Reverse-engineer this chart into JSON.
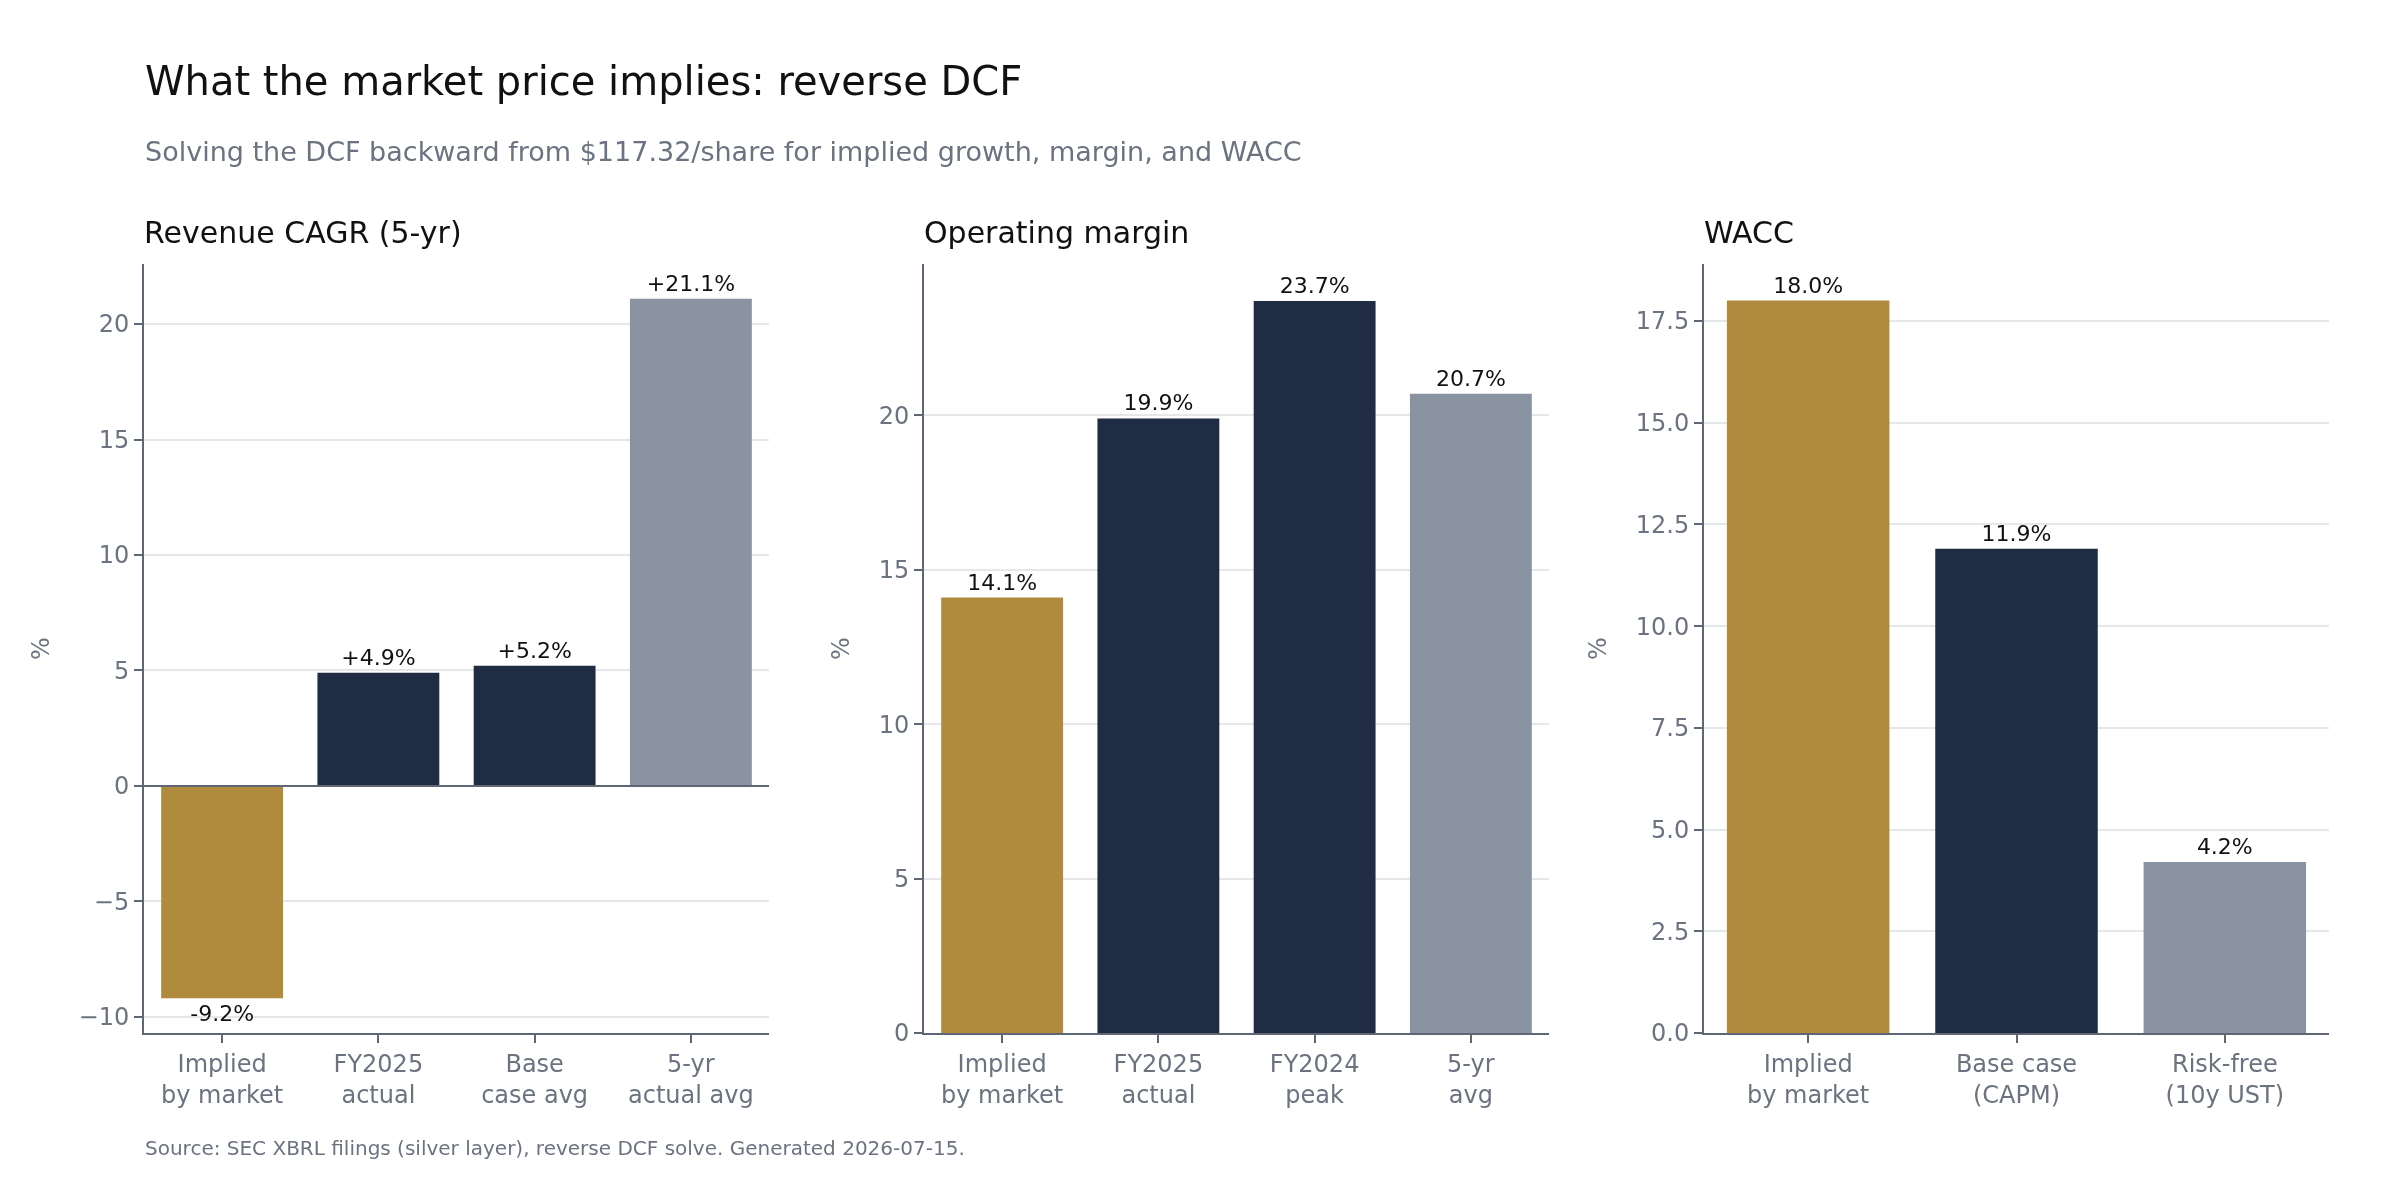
{
  "chart_data": [
    {
      "type": "other",
      "title": "What the market price implies: reverse DCF",
      "subtitle": "Solving the DCF backward from $117.32/share for implied growth, margin, and WACC",
      "annotations": [
        "Source: SEC XBRL filings (silver layer), reverse DCF solve. Generated 2026-07-15."
      ]
    },
    {
      "type": "bar",
      "title": "Revenue CAGR (5-yr)",
      "ylabel": "%",
      "categories": [
        "Implied\nby market",
        "FY2025\nactual",
        "Base\ncase avg",
        "5-yr\nactual avg"
      ],
      "values": [
        -9.2,
        4.9,
        5.2,
        21.1
      ],
      "colors": [
        "#b08b3e",
        "#1f2c44",
        "#1f2c44",
        "#8a93a2"
      ],
      "value_labels": [
        "-9.2%",
        "+4.9%",
        "+5.2%",
        "+21.1%"
      ],
      "ylim": [
        -10.7,
        22.6
      ],
      "yticks": [
        {
          "value": -10,
          "label": "−10"
        },
        {
          "value": -5,
          "label": "−5"
        },
        0,
        5,
        10,
        15,
        20
      ],
      "grid": "y",
      "ref_lines": [
        {
          "axis": "y",
          "value": 0,
          "color": "#5f6675"
        }
      ]
    },
    {
      "type": "bar",
      "title": "Operating margin",
      "ylabel": "%",
      "categories": [
        "Implied\nby market",
        "FY2025\nactual",
        "FY2024\npeak",
        "5-yr\navg"
      ],
      "values": [
        14.1,
        19.9,
        23.7,
        20.7
      ],
      "colors": [
        "#b08b3e",
        "#1f2c44",
        "#1f2c44",
        "#8a93a2"
      ],
      "value_labels": [
        "14.1%",
        "19.9%",
        "23.7%",
        "20.7%"
      ],
      "ylim": [
        0,
        24.9
      ],
      "yticks": [
        0,
        5,
        10,
        15,
        20
      ],
      "grid": "y"
    },
    {
      "type": "bar",
      "title": "WACC",
      "ylabel": "%",
      "categories": [
        "Implied\nby market",
        "Base case\n(CAPM)",
        "Risk-free\n(10y UST)"
      ],
      "values": [
        18.0,
        11.9,
        4.2
      ],
      "colors": [
        "#b08b3e",
        "#1f2c44",
        "#8a93a2"
      ],
      "value_labels": [
        "18.0%",
        "11.9%",
        "4.2%"
      ],
      "ylim": [
        0,
        18.9
      ],
      "yticks": [
        {
          "value": 0,
          "label": "0.0"
        },
        2.5,
        {
          "value": 5,
          "label": "5.0"
        },
        7.5,
        {
          "value": 10,
          "label": "10.0"
        },
        12.5,
        {
          "value": 15,
          "label": "15.0"
        },
        17.5
      ],
      "grid": "y"
    }
  ]
}
